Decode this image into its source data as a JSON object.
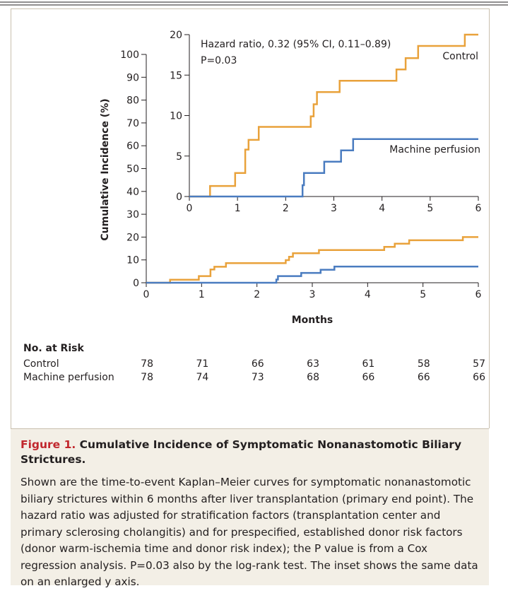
{
  "chart_data": [
    {
      "type": "line",
      "step": true,
      "ylabel": "Cumulative Incidence (%)",
      "xlabel": "Months",
      "xlim": [
        0,
        6
      ],
      "xticks": [
        0,
        1,
        2,
        3,
        4,
        5,
        6
      ],
      "ylim": [
        0,
        100
      ],
      "yticks": [
        0,
        10,
        20,
        30,
        40,
        50,
        60,
        70,
        80,
        90,
        100
      ],
      "series": [
        {
          "color": "#e9a23b",
          "x": [
            0,
            0.43,
            0.43,
            0.95,
            0.95,
            1.16,
            1.16,
            1.23,
            1.23,
            1.44,
            1.44,
            2.52,
            2.52,
            2.58,
            2.58,
            2.65,
            2.65,
            3.12,
            3.12,
            4.3,
            4.3,
            4.49,
            4.49,
            4.75,
            4.75,
            5.72,
            5.72,
            6
          ],
          "values": [
            0,
            0,
            1.3,
            1.3,
            2.9,
            2.9,
            5.8,
            5.8,
            7.0,
            7.0,
            8.6,
            8.6,
            9.9,
            9.9,
            11.4,
            11.4,
            12.9,
            12.9,
            14.3,
            14.3,
            15.7,
            15.7,
            17.1,
            17.1,
            18.6,
            18.6,
            20.0,
            20.0
          ]
        },
        {
          "color": "#4a7cc0",
          "x": [
            0,
            2.35,
            2.35,
            2.38,
            2.38,
            2.8,
            2.8,
            3.15,
            3.15,
            3.4,
            3.4,
            6
          ],
          "values": [
            0,
            0,
            1.4,
            1.4,
            2.9,
            2.9,
            4.3,
            4.3,
            5.7,
            5.7,
            7.1,
            7.1
          ]
        }
      ]
    },
    {
      "type": "line",
      "step": true,
      "inset": true,
      "annotations": [
        "Hazard ratio, 0.32 (95% CI, 0.11–0.89)",
        "P=0.03"
      ],
      "xlim": [
        0,
        6
      ],
      "xticks": [
        0,
        1,
        2,
        3,
        4,
        5,
        6
      ],
      "ylim": [
        0,
        20
      ],
      "yticks": [
        0,
        5,
        10,
        15,
        20
      ],
      "series": [
        {
          "name": "Control",
          "color": "#e9a23b",
          "x": [
            0,
            0.43,
            0.43,
            0.95,
            0.95,
            1.16,
            1.16,
            1.23,
            1.23,
            1.44,
            1.44,
            2.52,
            2.52,
            2.58,
            2.58,
            2.65,
            2.65,
            3.12,
            3.12,
            4.3,
            4.3,
            4.49,
            4.49,
            4.75,
            4.75,
            5.72,
            5.72,
            6
          ],
          "values": [
            0,
            0,
            1.3,
            1.3,
            2.9,
            2.9,
            5.8,
            5.8,
            7.0,
            7.0,
            8.6,
            8.6,
            9.9,
            9.9,
            11.4,
            11.4,
            12.9,
            12.9,
            14.3,
            14.3,
            15.7,
            15.7,
            17.1,
            17.1,
            18.6,
            18.6,
            20.0,
            20.0
          ]
        },
        {
          "name": "Machine perfusion",
          "color": "#4a7cc0",
          "x": [
            0,
            2.35,
            2.35,
            2.38,
            2.38,
            2.8,
            2.8,
            3.15,
            3.15,
            3.4,
            3.4,
            6
          ],
          "values": [
            0,
            0,
            1.4,
            1.4,
            2.9,
            2.9,
            4.3,
            4.3,
            5.7,
            5.7,
            7.1,
            7.1
          ]
        }
      ]
    }
  ],
  "risk_table": {
    "title": "No. at Risk",
    "rows": [
      {
        "label": "Control",
        "values": [
          78,
          71,
          66,
          63,
          61,
          58,
          57
        ]
      },
      {
        "label": "Machine perfusion",
        "values": [
          78,
          74,
          73,
          68,
          66,
          66,
          66
        ]
      }
    ]
  },
  "caption": {
    "label": "Figure 1.",
    "title": "Cumulative Incidence of Symptomatic Nonanastomotic Biliary Strictures.",
    "body": "Shown are the time-to-event Kaplan–Meier curves for symptomatic nonanastomotic biliary strictures within 6 months after liver transplantation (primary end point). The hazard ratio was adjusted for stratification factors (transplantation center and primary sclerosing cholangitis) and for prespecified, established donor risk factors (donor warm-ischemia time and donor risk index); the P value is from a Cox regression analysis. P=0.03 also by the log-rank test. The inset shows the same data on an enlarged y axis."
  }
}
